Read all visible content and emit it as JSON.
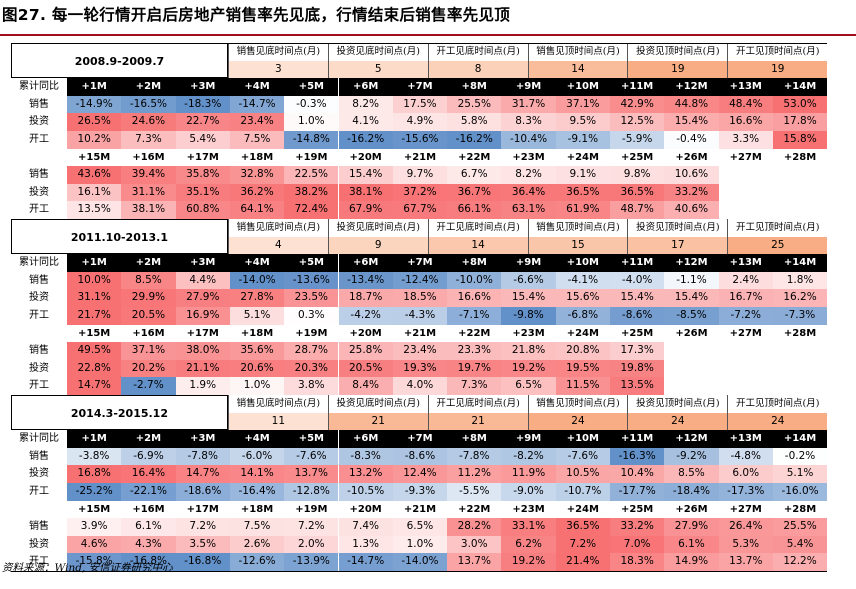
{
  "title": "图27. 每一轮行情开启后房地产销售率先见底，行情结束后销售率先见顶",
  "source": "资料来源：Wind, 安信证券研究中心",
  "header_labels": [
    "销售见底时间点(月)",
    "投资见底时间点(月)",
    "开工见底时间点(月)",
    "销售见顶时间点(月)",
    "投资见顶时间点(月)",
    "开工见顶时间点(月)"
  ],
  "row_labels": {
    "yoy": "累计同比",
    "sales": "销售",
    "invest": "投资",
    "start": "开工"
  },
  "months_a": [
    "+1M",
    "+2M",
    "+3M",
    "+4M",
    "+5M",
    "+6M",
    "+7M",
    "+8M",
    "+9M",
    "+10M",
    "+11M",
    "+12M",
    "+13M",
    "+14M"
  ],
  "months_b": [
    "+15M",
    "+16M",
    "+17M",
    "+18M",
    "+19M",
    "+20M",
    "+21M",
    "+22M",
    "+23M",
    "+24M",
    "+25M",
    "+26M",
    "+27M",
    "+28M"
  ],
  "periods": [
    {
      "name": "2008.9-2009.7",
      "turning": [
        "3",
        "5",
        "8",
        "14",
        "19",
        "19"
      ],
      "a": {
        "sales": [
          "-14.9%",
          "-16.5%",
          "-18.3%",
          "-14.7%",
          "-0.3%",
          "8.2%",
          "17.5%",
          "25.5%",
          "31.7%",
          "37.1%",
          "42.9%",
          "44.8%",
          "48.4%",
          "53.0%"
        ],
        "invest": [
          "26.5%",
          "24.6%",
          "22.7%",
          "23.4%",
          "1.0%",
          "4.1%",
          "4.9%",
          "5.8%",
          "8.3%",
          "9.5%",
          "12.5%",
          "15.4%",
          "16.6%",
          "17.8%"
        ],
        "start": [
          "10.2%",
          "7.3%",
          "5.4%",
          "7.5%",
          "-14.8%",
          "-16.2%",
          "-15.6%",
          "-16.2%",
          "-10.4%",
          "-9.1%",
          "-5.9%",
          "-0.4%",
          "3.3%",
          "15.8%"
        ]
      },
      "b": {
        "sales": [
          "43.6%",
          "39.4%",
          "35.8%",
          "32.8%",
          "22.5%",
          "15.4%",
          "9.7%",
          "6.7%",
          "8.2%",
          "9.1%",
          "9.8%",
          "10.6%",
          "",
          ""
        ],
        "invest": [
          "16.1%",
          "31.1%",
          "35.1%",
          "36.2%",
          "38.2%",
          "38.1%",
          "37.2%",
          "36.7%",
          "36.4%",
          "36.5%",
          "36.5%",
          "33.2%",
          "",
          ""
        ],
        "start": [
          "13.5%",
          "38.1%",
          "60.8%",
          "64.1%",
          "72.4%",
          "67.9%",
          "67.7%",
          "66.1%",
          "63.1%",
          "61.9%",
          "48.7%",
          "40.6%",
          "",
          ""
        ]
      }
    },
    {
      "name": "2011.10-2013.1",
      "turning": [
        "4",
        "9",
        "14",
        "15",
        "17",
        "25"
      ],
      "a": {
        "sales": [
          "10.0%",
          "8.5%",
          "4.4%",
          "-14.0%",
          "-13.6%",
          "-13.4%",
          "-12.4%",
          "-10.0%",
          "-6.6%",
          "-4.1%",
          "-4.0%",
          "-1.1%",
          "2.4%",
          "1.8%"
        ],
        "invest": [
          "31.1%",
          "29.9%",
          "27.9%",
          "27.8%",
          "23.5%",
          "18.7%",
          "18.5%",
          "16.6%",
          "15.4%",
          "15.6%",
          "15.4%",
          "15.4%",
          "16.7%",
          "16.2%"
        ],
        "start": [
          "21.7%",
          "20.5%",
          "16.9%",
          "5.1%",
          "0.3%",
          "-4.2%",
          "-4.3%",
          "-7.1%",
          "-9.8%",
          "-6.8%",
          "-8.6%",
          "-8.5%",
          "-7.2%",
          "-7.3%"
        ]
      },
      "b": {
        "sales": [
          "49.5%",
          "37.1%",
          "38.0%",
          "35.6%",
          "28.7%",
          "25.8%",
          "23.4%",
          "23.3%",
          "21.8%",
          "20.8%",
          "17.3%",
          "",
          "",
          ""
        ],
        "invest": [
          "22.8%",
          "20.2%",
          "21.1%",
          "20.6%",
          "20.3%",
          "20.5%",
          "19.3%",
          "19.7%",
          "19.2%",
          "19.5%",
          "19.8%",
          "",
          "",
          ""
        ],
        "start": [
          "14.7%",
          "-2.7%",
          "1.9%",
          "1.0%",
          "3.8%",
          "8.4%",
          "4.0%",
          "7.3%",
          "6.5%",
          "11.5%",
          "13.5%",
          "",
          "",
          ""
        ]
      }
    },
    {
      "name": "2014.3-2015.12",
      "turning": [
        "11",
        "21",
        "21",
        "24",
        "24",
        "24"
      ],
      "a": {
        "sales": [
          "-3.8%",
          "-6.9%",
          "-7.8%",
          "-6.0%",
          "-7.6%",
          "-8.3%",
          "-8.6%",
          "-7.8%",
          "-8.2%",
          "-7.6%",
          "-16.3%",
          "-9.2%",
          "-4.8%",
          "-0.2%"
        ],
        "invest": [
          "16.8%",
          "16.4%",
          "14.7%",
          "14.1%",
          "13.7%",
          "13.2%",
          "12.4%",
          "11.2%",
          "11.9%",
          "10.5%",
          "10.4%",
          "8.5%",
          "6.0%",
          "5.1%"
        ],
        "start": [
          "-25.2%",
          "-22.1%",
          "-18.6%",
          "-16.4%",
          "-12.8%",
          "-10.5%",
          "-9.3%",
          "-5.5%",
          "-9.0%",
          "-10.7%",
          "-17.7%",
          "-18.4%",
          "-17.3%",
          "-16.0%"
        ]
      },
      "b": {
        "sales": [
          "3.9%",
          "6.1%",
          "7.2%",
          "7.5%",
          "7.2%",
          "7.4%",
          "6.5%",
          "28.2%",
          "33.1%",
          "36.5%",
          "33.2%",
          "27.9%",
          "26.4%",
          "25.5%"
        ],
        "invest": [
          "4.6%",
          "4.3%",
          "3.5%",
          "2.6%",
          "2.0%",
          "1.3%",
          "1.0%",
          "3.0%",
          "6.2%",
          "7.2%",
          "7.0%",
          "6.1%",
          "5.3%",
          "5.4%"
        ],
        "start": [
          "-15.8%",
          "-16.8%",
          "-16.8%",
          "-12.6%",
          "-13.9%",
          "-14.7%",
          "-14.0%",
          "13.7%",
          "19.2%",
          "21.4%",
          "18.3%",
          "14.9%",
          "13.7%",
          "12.2%"
        ]
      }
    }
  ],
  "colors": {
    "pos_max": "#f7696b",
    "neg_max": "#5a8ac6",
    "header_bottom": "#fde1d2",
    "header_top": "#f8ad84",
    "black_bar": "#000000"
  }
}
